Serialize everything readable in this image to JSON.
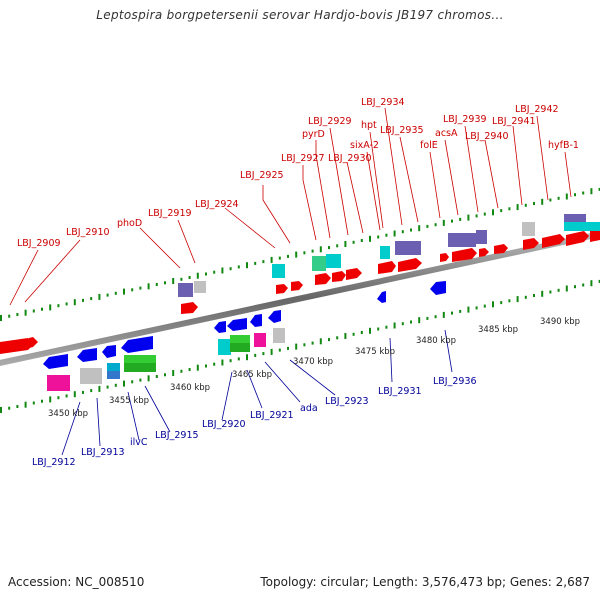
{
  "header": {
    "title": "Leptospira borgpetersenii serovar Hardjo-bovis JB197 chromos..."
  },
  "footer": {
    "accession": "Accession: NC_008510",
    "summary": "Topology: circular; Length: 3,576,473 bp; Genes: 2,687"
  },
  "colors": {
    "forward_gene": "#ee0000",
    "reverse_gene": "#0000ee",
    "forward_label": "#cc0000",
    "reverse_label": "#000099",
    "backbone": "#888888",
    "tick": "#118811"
  },
  "kbp_labels": [
    "3450 kbp",
    "3455 kbp",
    "3460 kbp",
    "3465 kbp",
    "3470 kbp",
    "3475 kbp",
    "3480 kbp",
    "3485 kbp",
    "3490 kbp"
  ],
  "forward_labels": [
    "LBJ_2909",
    "LBJ_2910",
    "phoD",
    "LBJ_2919",
    "LBJ_2924",
    "LBJ_2925",
    "LBJ_2927",
    "pyrD",
    "LBJ_2929",
    "LBJ_2930",
    "sixA-2",
    "hpt",
    "LBJ_2934",
    "LBJ_2935",
    "folE",
    "acsA",
    "LBJ_2939",
    "LBJ_2940",
    "LBJ_2941",
    "LBJ_2942",
    "hyfB-1"
  ],
  "reverse_labels": [
    "LBJ_2912",
    "LBJ_2913",
    "ilvC",
    "LBJ_2915",
    "LBJ_2920",
    "LBJ_2921",
    "ada",
    "LBJ_2923",
    "LBJ_2931",
    "LBJ_2936"
  ]
}
